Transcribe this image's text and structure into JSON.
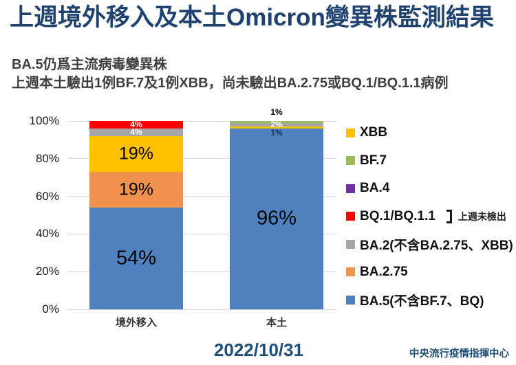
{
  "header": {
    "title": "上週境外移入及本土Omicron變異株監測結果",
    "subtitle_line1": "BA.5仍爲主流病毒變異株",
    "subtitle_line2": "上週本土驗出1例BF.7及1例XBB，尚未驗出BA.2.75或BQ.1/BQ.1.1病例"
  },
  "footer": {
    "date": "2022/10/31",
    "agency": "中央流行疫情指揮中心"
  },
  "colors": {
    "title_navy": "#1F4270",
    "footer_navy": "#1F4E79",
    "subtitle_gray": "#3F3F3F",
    "gridline": "#D9D9D9",
    "ba5_blue": "#4E81BD",
    "ba275_orange": "#F0914D",
    "xbb_gold": "#FFC000",
    "ba2_gray": "#A6A6A6",
    "bq1_red": "#FF0000",
    "ba4_purple": "#7030A0",
    "bf7_green": "#9BBB59"
  },
  "chart_data": {
    "type": "bar",
    "stacked": true,
    "grid": true,
    "title": "",
    "xlabel": "",
    "ylabel": "",
    "ylim": [
      0,
      100
    ],
    "categories": [
      "境外移入",
      "本土"
    ],
    "series": [
      {
        "name": "BA.5(不含BF.7、BQ)",
        "color": "#4E81BD",
        "values": [
          54,
          96
        ]
      },
      {
        "name": "BA.2.75",
        "color": "#F0914D",
        "values": [
          19,
          0
        ]
      },
      {
        "name": "XBB",
        "color": "#FFC000",
        "values": [
          19,
          1
        ]
      },
      {
        "name": "BA.2(不含BA.2.75、XBB)",
        "color": "#A6A6A6",
        "values": [
          4,
          2
        ]
      },
      {
        "name": "BQ.1/BQ.1.1",
        "color": "#FF0000",
        "values": [
          4,
          0
        ]
      },
      {
        "name": "BA.4",
        "color": "#7030A0",
        "values": [
          0,
          0
        ]
      },
      {
        "name": "BF.7",
        "color": "#9BBB59",
        "values": [
          0,
          1
        ]
      }
    ],
    "y_axis": {
      "ticks": [
        {
          "value": 0,
          "label": "0%"
        },
        {
          "value": 20,
          "label": "20%"
        },
        {
          "value": 40,
          "label": "40%"
        },
        {
          "value": 60,
          "label": "60%"
        },
        {
          "value": 80,
          "label": "80%"
        },
        {
          "value": 100,
          "label": "100%"
        }
      ]
    },
    "bar_value_labels": [
      [
        {
          "text": "54%",
          "y_pct": 27,
          "style": "xl",
          "color": "#000000"
        },
        {
          "text": "19%",
          "y_pct": 63.5,
          "style": "lg",
          "color": "#000000"
        },
        {
          "text": "19%",
          "y_pct": 82.5,
          "style": "lg",
          "color": "#000000"
        },
        {
          "text": "4%",
          "y_pct": 94,
          "style": "sm",
          "color": "#FFFFFF"
        },
        {
          "text": "4%",
          "y_pct": 98,
          "style": "sm",
          "color": "#FFFFFF"
        }
      ],
      [
        {
          "text": "96%",
          "y_pct": 48,
          "style": "xl",
          "color": "#000000"
        },
        {
          "text": "1%",
          "y_pct": 93.8,
          "style": "sm",
          "color": "#17375E"
        },
        {
          "text": "2%",
          "y_pct": 98.2,
          "style": "sm",
          "color": "#FFFFFF"
        },
        {
          "text": "1%",
          "y_pct": 104.8,
          "style": "sm",
          "color": "#000000"
        }
      ]
    ],
    "legend": {
      "position": "right",
      "items": [
        {
          "label": "XBB",
          "color": "#FFC000"
        },
        {
          "label": "BF.7",
          "color": "#9BBB59"
        },
        {
          "label": "BA.4",
          "color": "#7030A0"
        },
        {
          "label": "BQ.1/BQ.1.1",
          "color": "#FF0000",
          "note": "上週未檢出"
        },
        {
          "label": "BA.2(不含BA.2.75、XBB)",
          "color": "#A6A6A6"
        },
        {
          "label": "BA.2.75",
          "color": "#F0914D"
        },
        {
          "label": "BA.5(不含BF.7、BQ)",
          "color": "#4E81BD"
        }
      ]
    }
  }
}
